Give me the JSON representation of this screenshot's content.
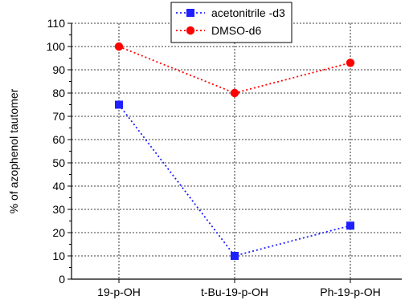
{
  "chart_data": {
    "type": "line",
    "categories": [
      "19-p-OH",
      "t-Bu-19-p-OH",
      "Ph-19-p-OH"
    ],
    "ylabel": "% of azophenol tautomer",
    "xlabel": "",
    "ylim": [
      0,
      110
    ],
    "yticks": [
      0,
      10,
      20,
      30,
      40,
      50,
      60,
      70,
      80,
      90,
      100,
      110
    ],
    "grid": "dashed",
    "legend_position": "top-center",
    "series": [
      {
        "name": "acetonitrile -d3",
        "values": [
          75,
          10,
          23
        ],
        "color": "#1f1fff",
        "marker": "square"
      },
      {
        "name": "DMSO-d6",
        "values": [
          100,
          80,
          93
        ],
        "color": "#ff0000",
        "marker": "circle"
      }
    ]
  }
}
